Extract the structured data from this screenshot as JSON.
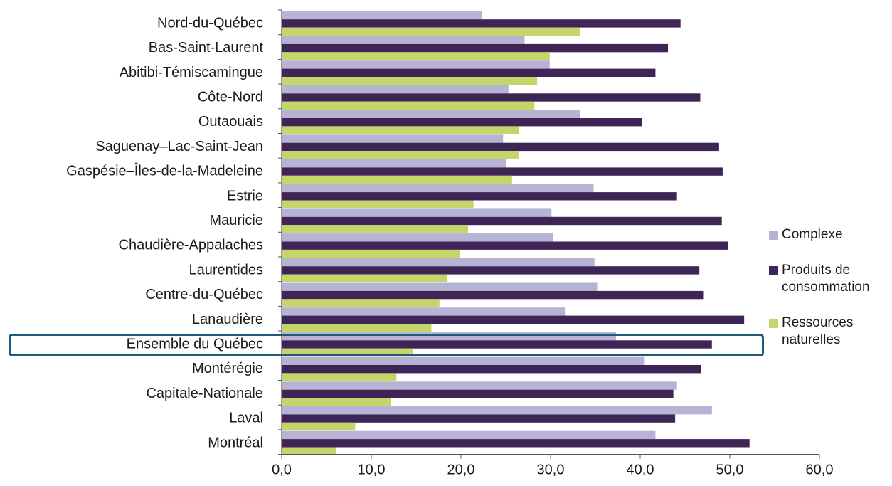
{
  "chart_data": {
    "type": "bar",
    "orientation": "horizontal",
    "categories": [
      "Nord-du-Québec",
      "Bas-Saint-Laurent",
      "Abitibi-Témiscamingue",
      "Côte-Nord",
      "Outaouais",
      "Saguenay–Lac-Saint-Jean",
      "Gaspésie–Îles-de-la-Madeleine",
      "Estrie",
      "Mauricie",
      "Chaudière-Appalaches",
      "Laurentides",
      "Centre-du-Québec",
      "Lanaudière",
      "Ensemble du Québec",
      "Montérégie",
      "Capitale-Nationale",
      "Laval",
      "Montréal"
    ],
    "series": [
      {
        "name": "Complexe",
        "color": "#b6b3d4",
        "values": [
          22.3,
          27.1,
          29.9,
          25.3,
          33.3,
          24.7,
          25.0,
          34.8,
          30.1,
          30.3,
          34.9,
          35.2,
          31.6,
          37.3,
          40.5,
          44.1,
          48.0,
          41.7
        ]
      },
      {
        "name": "Produits de consommation",
        "color": "#3f2456",
        "values": [
          44.5,
          43.1,
          41.7,
          46.7,
          40.2,
          48.8,
          49.2,
          44.1,
          49.1,
          49.8,
          46.6,
          47.1,
          51.6,
          48.0,
          46.8,
          43.7,
          43.9,
          52.2
        ]
      },
      {
        "name": "Ressources naturelles",
        "color": "#c4d56a",
        "values": [
          33.3,
          29.9,
          28.5,
          28.2,
          26.5,
          26.5,
          25.7,
          21.4,
          20.8,
          19.9,
          18.5,
          17.6,
          16.7,
          14.6,
          12.8,
          12.2,
          8.2,
          6.1
        ]
      }
    ],
    "x_ticks": [
      "0,0",
      "10,0",
      "20,0",
      "30,0",
      "40,0",
      "50,0",
      "60,0"
    ],
    "xlim": [
      0,
      60
    ],
    "title": "",
    "xlabel": "",
    "ylabel": "",
    "grid": false,
    "legend_position": "right",
    "highlighted_category": "Ensemble du Québec",
    "highlight_color": "#1f5a7a"
  },
  "legend": {
    "items": [
      {
        "label": "Complexe"
      },
      {
        "label": "Produits de consommation"
      },
      {
        "label": "Ressources naturelles"
      }
    ]
  }
}
